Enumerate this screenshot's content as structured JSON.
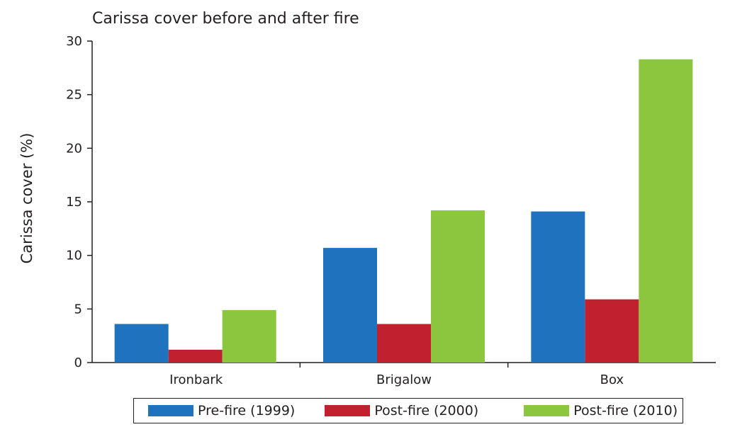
{
  "chart_data": {
    "type": "bar",
    "title": "Carissa cover before and after fire",
    "ylabel": "Carissa cover (%)",
    "xlabel": "",
    "ylim": [
      0,
      30
    ],
    "yticks": [
      0,
      5,
      10,
      15,
      20,
      25,
      30
    ],
    "categories": [
      "Ironbark",
      "Brigalow",
      "Box"
    ],
    "series": [
      {
        "name": "Pre-fire (1999)",
        "color": "#1f72bd",
        "values": [
          3.6,
          10.7,
          14.1
        ]
      },
      {
        "name": "Post-fire (2000)",
        "color": "#c1212e",
        "values": [
          1.2,
          3.6,
          5.9
        ]
      },
      {
        "name": "Post-fire (2010)",
        "color": "#8cc63f",
        "values": [
          4.9,
          14.2,
          28.3
        ]
      }
    ],
    "grid": false,
    "legend_position": "bottom"
  }
}
